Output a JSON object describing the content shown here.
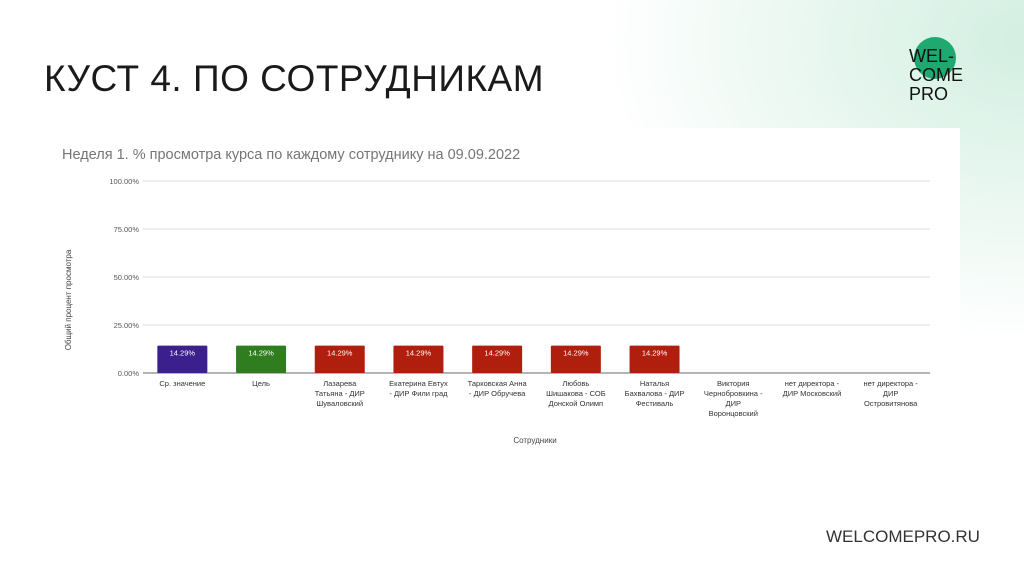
{
  "slide": {
    "title": "КУСТ 4. ПО СОТРУДНИКАМ",
    "footer": "WELCOMEPRO.RU",
    "logo_text": [
      "WEL-",
      "COME",
      "PRO"
    ],
    "logo_color": "#1fa971"
  },
  "chart_data": {
    "type": "bar",
    "title": "Неделя 1. % просмотра курса по каждому сотруднику на 09.09.2022",
    "xlabel": "Сотрудники",
    "ylabel": "Общий процент просмотра",
    "ylim": [
      0,
      100
    ],
    "yticks": [
      "0.00%",
      "25.00%",
      "50.00%",
      "75.00%",
      "100.00%"
    ],
    "grid": true,
    "categories": [
      [
        "Ср. значение"
      ],
      [
        "Цель"
      ],
      [
        "Лазарева",
        "Татьяна - ДИР",
        "Шуваловский"
      ],
      [
        "Екатерина Евтух",
        "- ДИР Фили град"
      ],
      [
        "Тарковская Анна",
        "- ДИР Обручева"
      ],
      [
        "Любовь",
        "Шишакова - СОБ",
        "Донской Олимп"
      ],
      [
        "Наталья",
        "Бахвалова - ДИР",
        "Фестиваль"
      ],
      [
        "Виктория",
        "Чернобровкина -",
        "ДИР",
        "Воронцовский"
      ],
      [
        "нет директора -",
        "ДИР Московский"
      ],
      [
        "нет директора -",
        "ДИР",
        "Островитянова"
      ]
    ],
    "values": [
      14.29,
      14.29,
      14.29,
      14.29,
      14.29,
      14.29,
      14.29,
      null,
      null,
      null
    ],
    "data_labels": [
      "14.29%",
      "14.29%",
      "14.29%",
      "14.29%",
      "14.29%",
      "14.29%",
      "14.29%",
      "",
      "",
      ""
    ],
    "colors": [
      "#3b1f8c",
      "#2f7d1f",
      "#b01e0e",
      "#b01e0e",
      "#b01e0e",
      "#b01e0e",
      "#b01e0e",
      "#b01e0e",
      "#b01e0e",
      "#b01e0e"
    ]
  }
}
